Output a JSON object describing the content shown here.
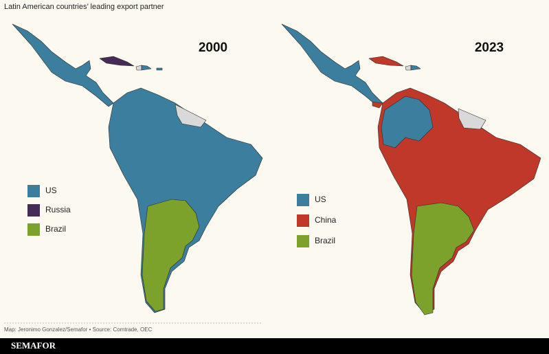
{
  "title": "Latin American countries’ leading export partner",
  "maps": [
    {
      "year": "2000",
      "legend": [
        {
          "label": "US",
          "color": "#3c7e9d"
        },
        {
          "label": "Russia",
          "color": "#472b57"
        },
        {
          "label": "Brazil",
          "color": "#7ca22b"
        }
      ]
    },
    {
      "year": "2023",
      "legend": [
        {
          "label": "US",
          "color": "#3c7e9d"
        },
        {
          "label": "China",
          "color": "#c0382a"
        },
        {
          "label": "Brazil",
          "color": "#7ca22b"
        }
      ]
    }
  ],
  "credit": "Map: Jeronimo Gonzalez/Semafor • Source: Comtrade, OEC",
  "brand": "SEMAFOR"
}
